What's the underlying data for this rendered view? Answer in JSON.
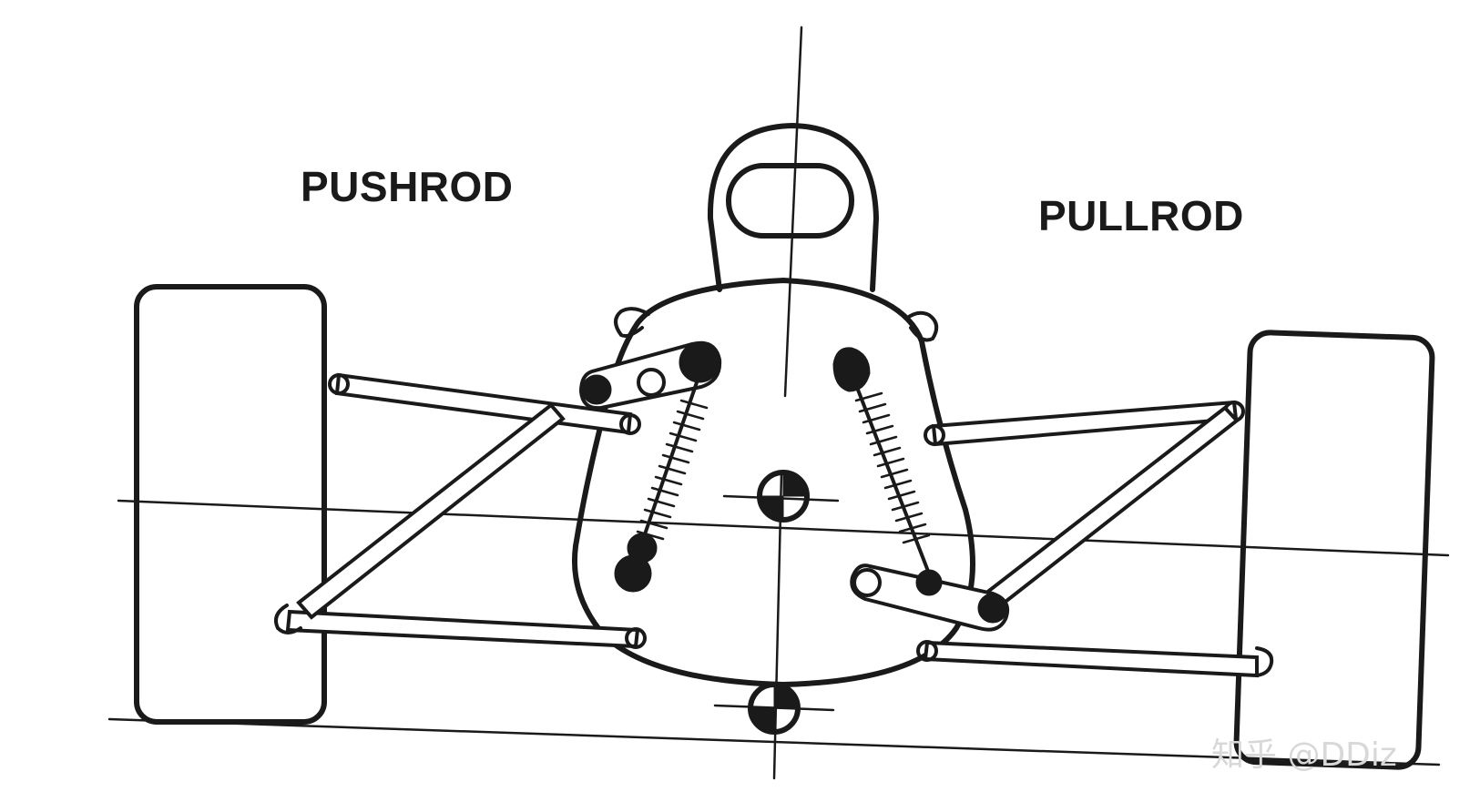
{
  "labels": {
    "left": "PUSHROD",
    "right": "PULLROD"
  },
  "watermark": "知乎 @DDiz",
  "colors": {
    "ink": "#1a1a1a",
    "background": "#ffffff",
    "watermark": "#d8d8d8"
  }
}
